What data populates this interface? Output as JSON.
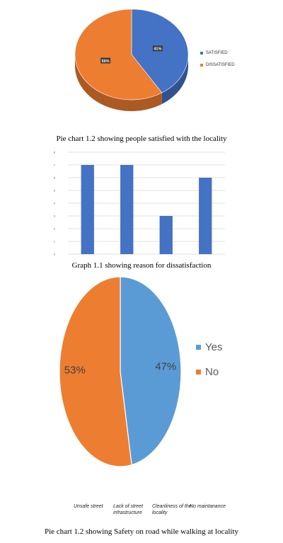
{
  "chart_data": [
    {
      "type": "pie",
      "title": "",
      "categories": [
        "SATISFIED",
        "DISSATISFIED"
      ],
      "values": [
        41,
        59
      ],
      "labels": [
        "41%",
        "59%"
      ],
      "colors": [
        "#4472c4",
        "#ed7d31"
      ],
      "style": "3d",
      "legend": "right"
    },
    {
      "type": "bar",
      "title": "",
      "categories": [
        "Unsafe street",
        "Lack of street infrastructure",
        "Cleanliness of the locality",
        "No maintanance"
      ],
      "values": [
        7,
        7,
        3,
        6
      ],
      "ylim": [
        0,
        8
      ],
      "yticks": [
        "0",
        "1",
        "2",
        "3",
        "4",
        "5",
        "6",
        "7",
        "8"
      ],
      "color": "#4472c4",
      "grid": true
    },
    {
      "type": "pie",
      "title": "",
      "categories": [
        "Yes",
        "No"
      ],
      "values": [
        47,
        53
      ],
      "labels": [
        "47%",
        "53%"
      ],
      "colors": [
        "#5b9bd5",
        "#ed7d31"
      ],
      "legend": "right"
    }
  ],
  "captions": {
    "pie1": "Pie chart 1.2 showing people satisfied with the locality",
    "graph1": "Graph 1.1 showing reason for dissatisfaction",
    "pie2": "Pie chart 1.2 showing Safety on road while walking at locality"
  },
  "x_category_lines": [
    [
      "Unsafe street"
    ],
    [
      "Lack of street",
      "infrastructure"
    ],
    [
      "Cleanliness of the",
      "locality"
    ],
    [
      "No maintanance"
    ]
  ]
}
